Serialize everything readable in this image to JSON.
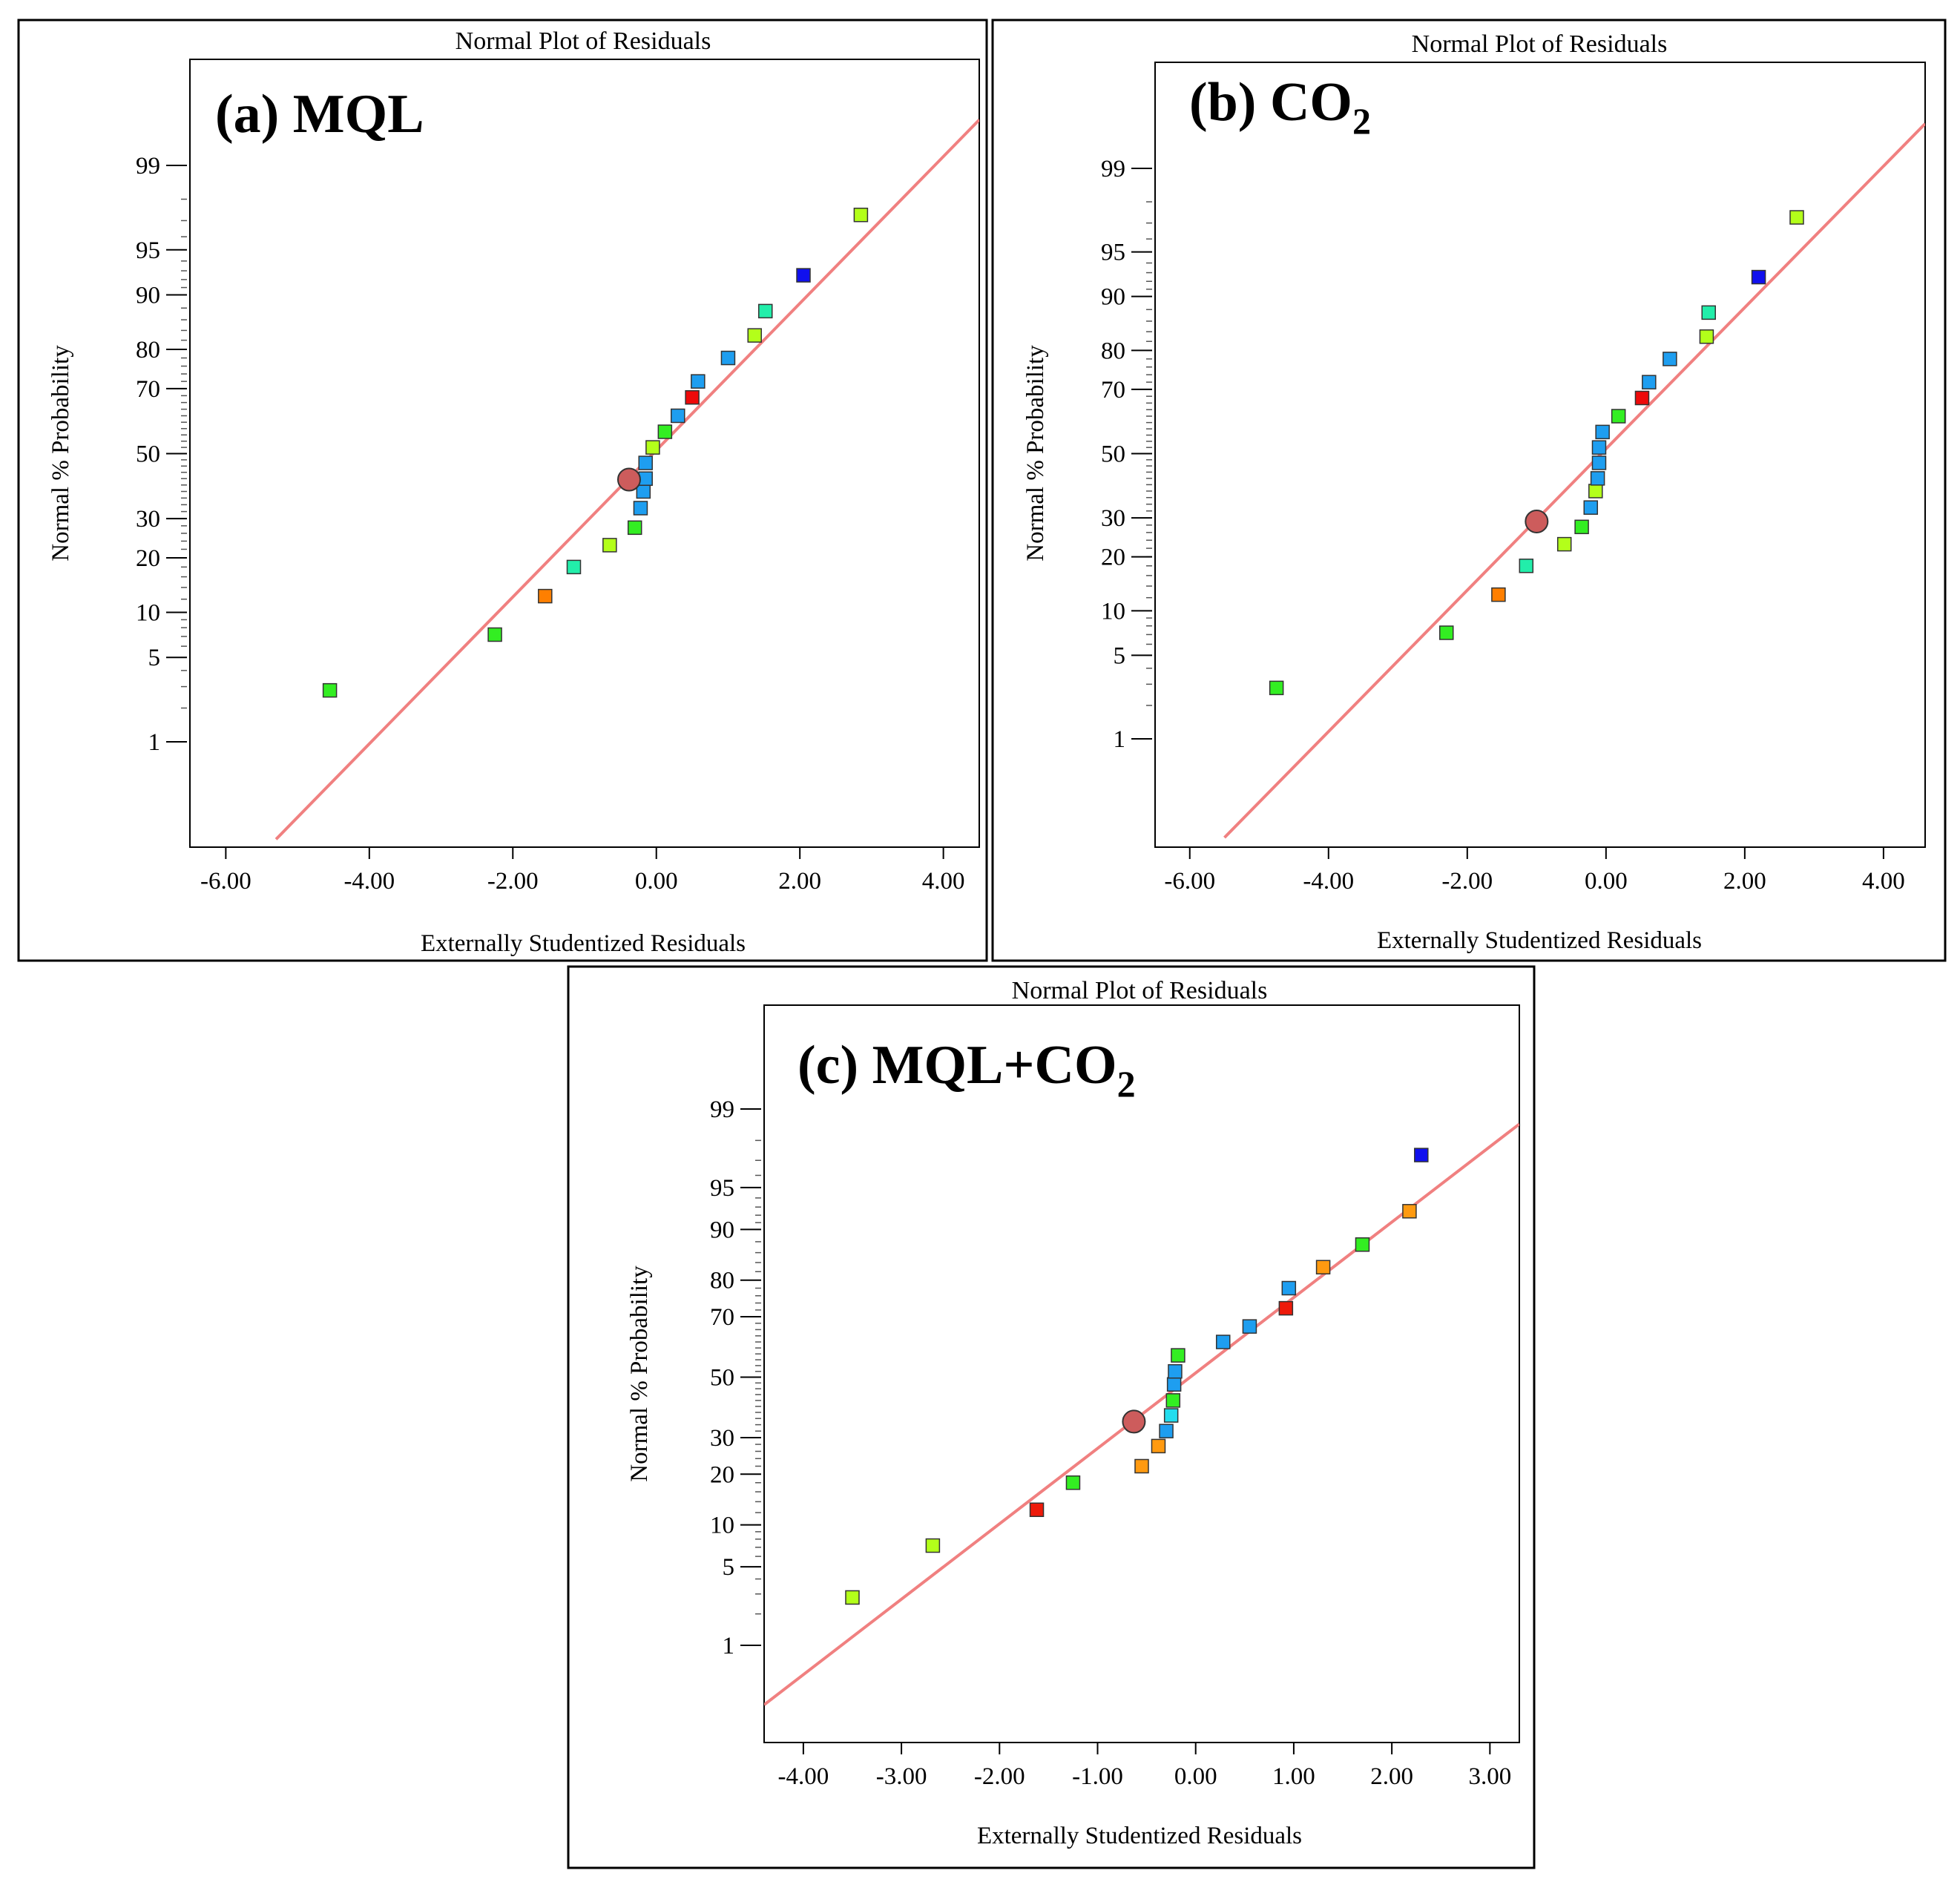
{
  "chart_data": [
    {
      "id": "a",
      "type": "scatter",
      "label_main": "(a) MQL",
      "label_sub": "",
      "title": "Normal Plot of Residuals",
      "xlabel": "Externally Studentized Residuals",
      "ylabel": "Normal % Probability",
      "xlim": [
        -6.5,
        4.5
      ],
      "ylim_pct": [
        0.1,
        99.9
      ],
      "xticks": [
        "-6.00",
        "-4.00",
        "-2.00",
        "0.00",
        "2.00",
        "4.00"
      ],
      "yticks": [
        "1",
        "5",
        "10",
        "20",
        "30",
        "50",
        "70",
        "80",
        "90",
        "95",
        "99"
      ],
      "line": {
        "x": [
          -5.3,
          4.5
        ],
        "color": "#f08080"
      },
      "highlight": {
        "x": -0.38,
        "pct": 41.7,
        "color": "#cd5c5c"
      },
      "points": [
        {
          "x": -4.55,
          "pct": 2.8,
          "color": "#33ee22"
        },
        {
          "x": -2.25,
          "pct": 7.2,
          "color": "#33ee22"
        },
        {
          "x": -1.55,
          "pct": 12.5,
          "color": "#ff7f00"
        },
        {
          "x": -1.15,
          "pct": 18.0,
          "color": "#22eeaa"
        },
        {
          "x": -0.65,
          "pct": 23.0,
          "color": "#b3ff1a"
        },
        {
          "x": -0.3,
          "pct": 27.5,
          "color": "#33ee22"
        },
        {
          "x": -0.22,
          "pct": 33.0,
          "color": "#1e9ef0"
        },
        {
          "x": -0.18,
          "pct": 38.0,
          "color": "#1e9ef0"
        },
        {
          "x": -0.15,
          "pct": 42.0,
          "color": "#1e9ef0"
        },
        {
          "x": -0.15,
          "pct": 47.0,
          "color": "#1e9ef0"
        },
        {
          "x": -0.05,
          "pct": 52.0,
          "color": "#b3ff1a"
        },
        {
          "x": 0.12,
          "pct": 57.0,
          "color": "#33ee22"
        },
        {
          "x": 0.3,
          "pct": 62.0,
          "color": "#1e9ef0"
        },
        {
          "x": 0.5,
          "pct": 67.5,
          "color": "#ee0a0a"
        },
        {
          "x": 0.58,
          "pct": 72.0,
          "color": "#1e9ef0"
        },
        {
          "x": 1.0,
          "pct": 78.0,
          "color": "#1e9ef0"
        },
        {
          "x": 1.37,
          "pct": 83.0,
          "color": "#b3ff1a"
        },
        {
          "x": 1.52,
          "pct": 87.5,
          "color": "#22eeaa"
        },
        {
          "x": 2.05,
          "pct": 92.5,
          "color": "#1010ee"
        },
        {
          "x": 2.85,
          "pct": 97.3,
          "color": "#b3ff1a"
        }
      ]
    },
    {
      "id": "b",
      "type": "scatter",
      "label_main": "(b) CO",
      "label_sub": "2",
      "title": "Normal Plot of Residuals",
      "xlabel": "Externally Studentized Residuals",
      "ylabel": "Normal % Probability",
      "xlim": [
        -6.5,
        4.6
      ],
      "ylim_pct": [
        0.1,
        99.9
      ],
      "xticks": [
        "-6.00",
        "-4.00",
        "-2.00",
        "0.00",
        "2.00",
        "4.00"
      ],
      "yticks": [
        "1",
        "5",
        "10",
        "20",
        "30",
        "50",
        "70",
        "80",
        "90",
        "95",
        "99"
      ],
      "line": {
        "x": [
          -5.5,
          4.6
        ],
        "color": "#f08080"
      },
      "highlight": {
        "x": -1.0,
        "pct": 29.0,
        "color": "#cd5c5c"
      },
      "points": [
        {
          "x": -4.75,
          "pct": 2.8,
          "color": "#33ee22"
        },
        {
          "x": -2.3,
          "pct": 7.2,
          "color": "#33ee22"
        },
        {
          "x": -1.55,
          "pct": 12.5,
          "color": "#ff7f00"
        },
        {
          "x": -1.15,
          "pct": 18.0,
          "color": "#22eeaa"
        },
        {
          "x": -0.6,
          "pct": 23.0,
          "color": "#b3ff1a"
        },
        {
          "x": -0.35,
          "pct": 27.5,
          "color": "#33ee22"
        },
        {
          "x": -0.22,
          "pct": 33.0,
          "color": "#1e9ef0"
        },
        {
          "x": -0.15,
          "pct": 38.0,
          "color": "#b3ff1a"
        },
        {
          "x": -0.12,
          "pct": 42.0,
          "color": "#1e9ef0"
        },
        {
          "x": -0.1,
          "pct": 47.0,
          "color": "#1e9ef0"
        },
        {
          "x": -0.1,
          "pct": 52.0,
          "color": "#1e9ef0"
        },
        {
          "x": -0.05,
          "pct": 57.0,
          "color": "#1e9ef0"
        },
        {
          "x": 0.18,
          "pct": 62.0,
          "color": "#33ee22"
        },
        {
          "x": 0.52,
          "pct": 67.5,
          "color": "#ee0a0a"
        },
        {
          "x": 0.62,
          "pct": 72.0,
          "color": "#1e9ef0"
        },
        {
          "x": 0.92,
          "pct": 78.0,
          "color": "#1e9ef0"
        },
        {
          "x": 1.45,
          "pct": 83.0,
          "color": "#b3ff1a"
        },
        {
          "x": 1.48,
          "pct": 87.5,
          "color": "#22eeaa"
        },
        {
          "x": 2.2,
          "pct": 92.5,
          "color": "#1010ee"
        },
        {
          "x": 2.75,
          "pct": 97.3,
          "color": "#b3ff1a"
        }
      ]
    },
    {
      "id": "c",
      "type": "scatter",
      "label_main": "(c) MQL+CO",
      "label_sub": "2",
      "title": "Normal Plot of Residuals",
      "xlabel": "Externally Studentized Residuals",
      "ylabel": "Normal % Probability",
      "xlim": [
        -4.4,
        3.3
      ],
      "ylim_pct": [
        0.1,
        99.9
      ],
      "xticks": [
        "-4.00",
        "-3.00",
        "-2.00",
        "-1.00",
        "0.00",
        "1.00",
        "2.00",
        "3.00"
      ],
      "yticks": [
        "1",
        "5",
        "10",
        "20",
        "30",
        "50",
        "70",
        "80",
        "90",
        "95",
        "99"
      ],
      "line": {
        "x": [
          -4.4,
          3.3
        ],
        "color": "#f08080"
      },
      "highlight": {
        "x": -0.63,
        "pct": 35.0,
        "color": "#cd5c5c"
      },
      "points": [
        {
          "x": -3.5,
          "pct": 2.8,
          "color": "#b3ff1a"
        },
        {
          "x": -2.68,
          "pct": 7.2,
          "color": "#b3ff1a"
        },
        {
          "x": -1.62,
          "pct": 12.5,
          "color": "#ee1a0a"
        },
        {
          "x": -1.25,
          "pct": 18.0,
          "color": "#33ee22"
        },
        {
          "x": -0.55,
          "pct": 22.0,
          "color": "#ff9a10"
        },
        {
          "x": -0.38,
          "pct": 27.5,
          "color": "#ff9a10"
        },
        {
          "x": -0.3,
          "pct": 32.0,
          "color": "#1e9ef0"
        },
        {
          "x": -0.25,
          "pct": 37.0,
          "color": "#22ddee"
        },
        {
          "x": -0.23,
          "pct": 42.0,
          "color": "#33ee22"
        },
        {
          "x": -0.22,
          "pct": 47.5,
          "color": "#1e9ef0"
        },
        {
          "x": -0.21,
          "pct": 52.0,
          "color": "#1e9ef0"
        },
        {
          "x": -0.18,
          "pct": 57.5,
          "color": "#33ee22"
        },
        {
          "x": 0.28,
          "pct": 62.0,
          "color": "#1e9ef0"
        },
        {
          "x": 0.55,
          "pct": 67.0,
          "color": "#1e9ef0"
        },
        {
          "x": 0.92,
          "pct": 72.5,
          "color": "#ee1a0a"
        },
        {
          "x": 0.95,
          "pct": 78.0,
          "color": "#1e9ef0"
        },
        {
          "x": 1.3,
          "pct": 83.0,
          "color": "#ff9a10"
        },
        {
          "x": 1.7,
          "pct": 87.5,
          "color": "#33ee22"
        },
        {
          "x": 2.18,
          "pct": 92.5,
          "color": "#ff9a10"
        },
        {
          "x": 2.3,
          "pct": 97.3,
          "color": "#1010ee"
        }
      ]
    }
  ]
}
